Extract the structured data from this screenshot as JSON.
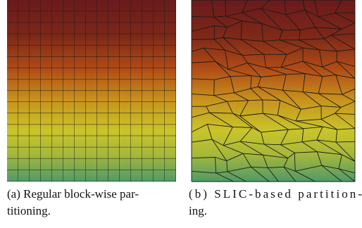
{
  "figure": {
    "subfigures": [
      {
        "caption_lines": [
          "(a) Regular block-wise par-",
          "titioning."
        ]
      },
      {
        "caption_lines": [
          "(b) SLIC-based partition-",
          "ing."
        ]
      }
    ]
  }
}
